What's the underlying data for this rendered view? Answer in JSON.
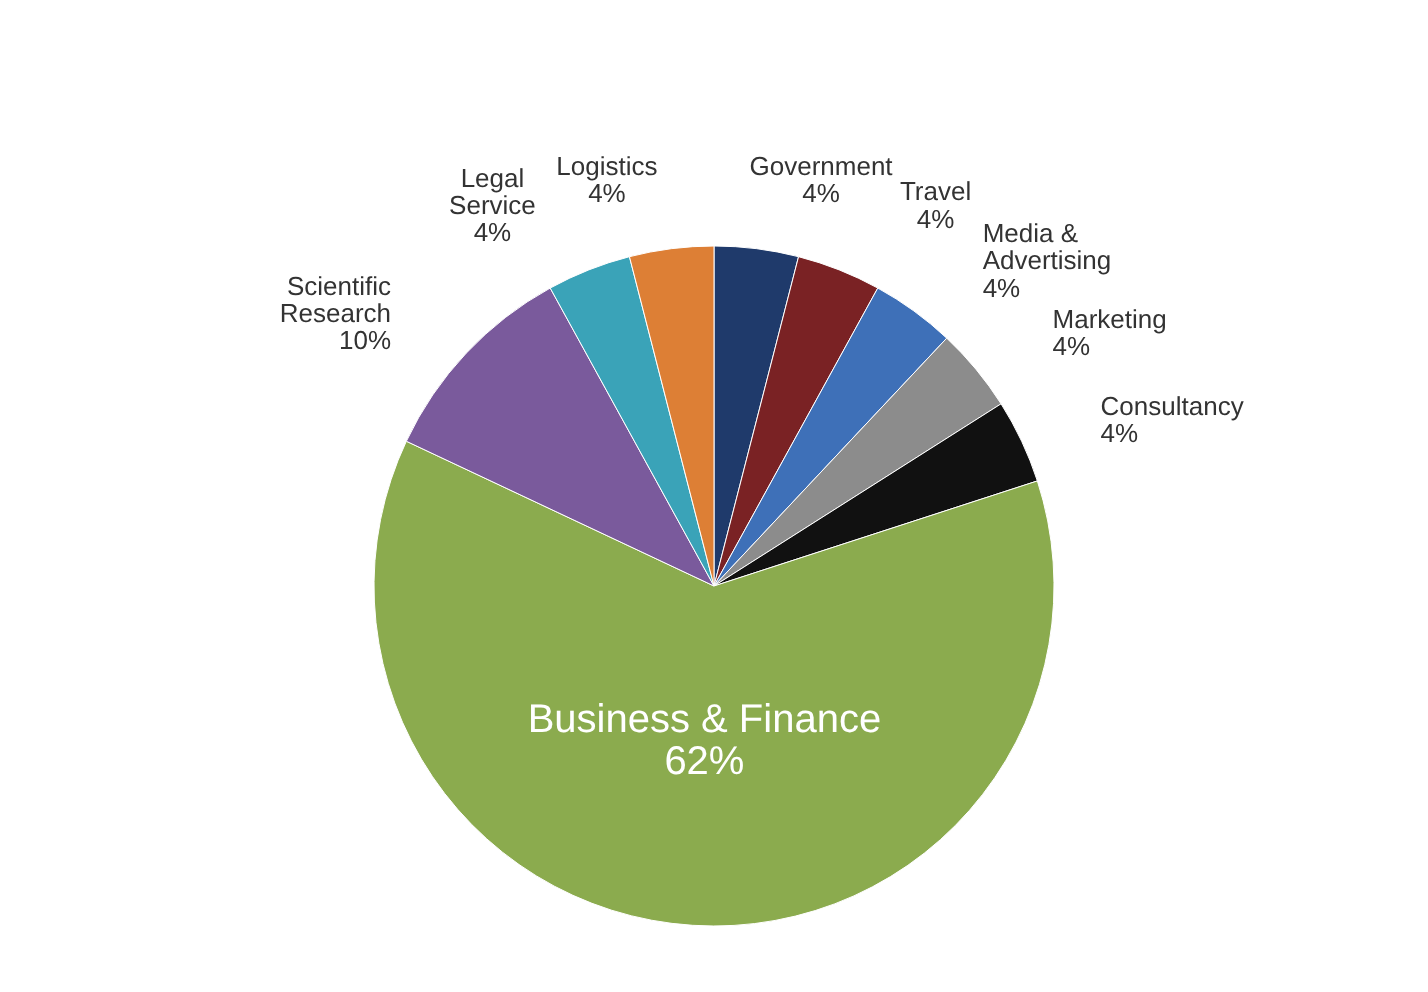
{
  "chart_data": {
    "type": "pie",
    "categories": [
      "Government",
      "Travel",
      "Media & Advertising",
      "Marketing",
      "Consultancy",
      "Business & Finance",
      "Scientific Research",
      "Legal Service",
      "Logistics"
    ],
    "values": [
      4,
      4,
      4,
      4,
      4,
      62,
      10,
      4,
      4
    ],
    "value_labels": [
      "4%",
      "4%",
      "4%",
      "4%",
      "4%",
      "62%",
      "10%",
      "4%",
      "4%"
    ],
    "colors": [
      "#1f3a6b",
      "#7a2224",
      "#3e70b8",
      "#8c8c8c",
      "#111111",
      "#8bab4e",
      "#7a5a9c",
      "#3aa3b8",
      "#dd7f35"
    ]
  }
}
